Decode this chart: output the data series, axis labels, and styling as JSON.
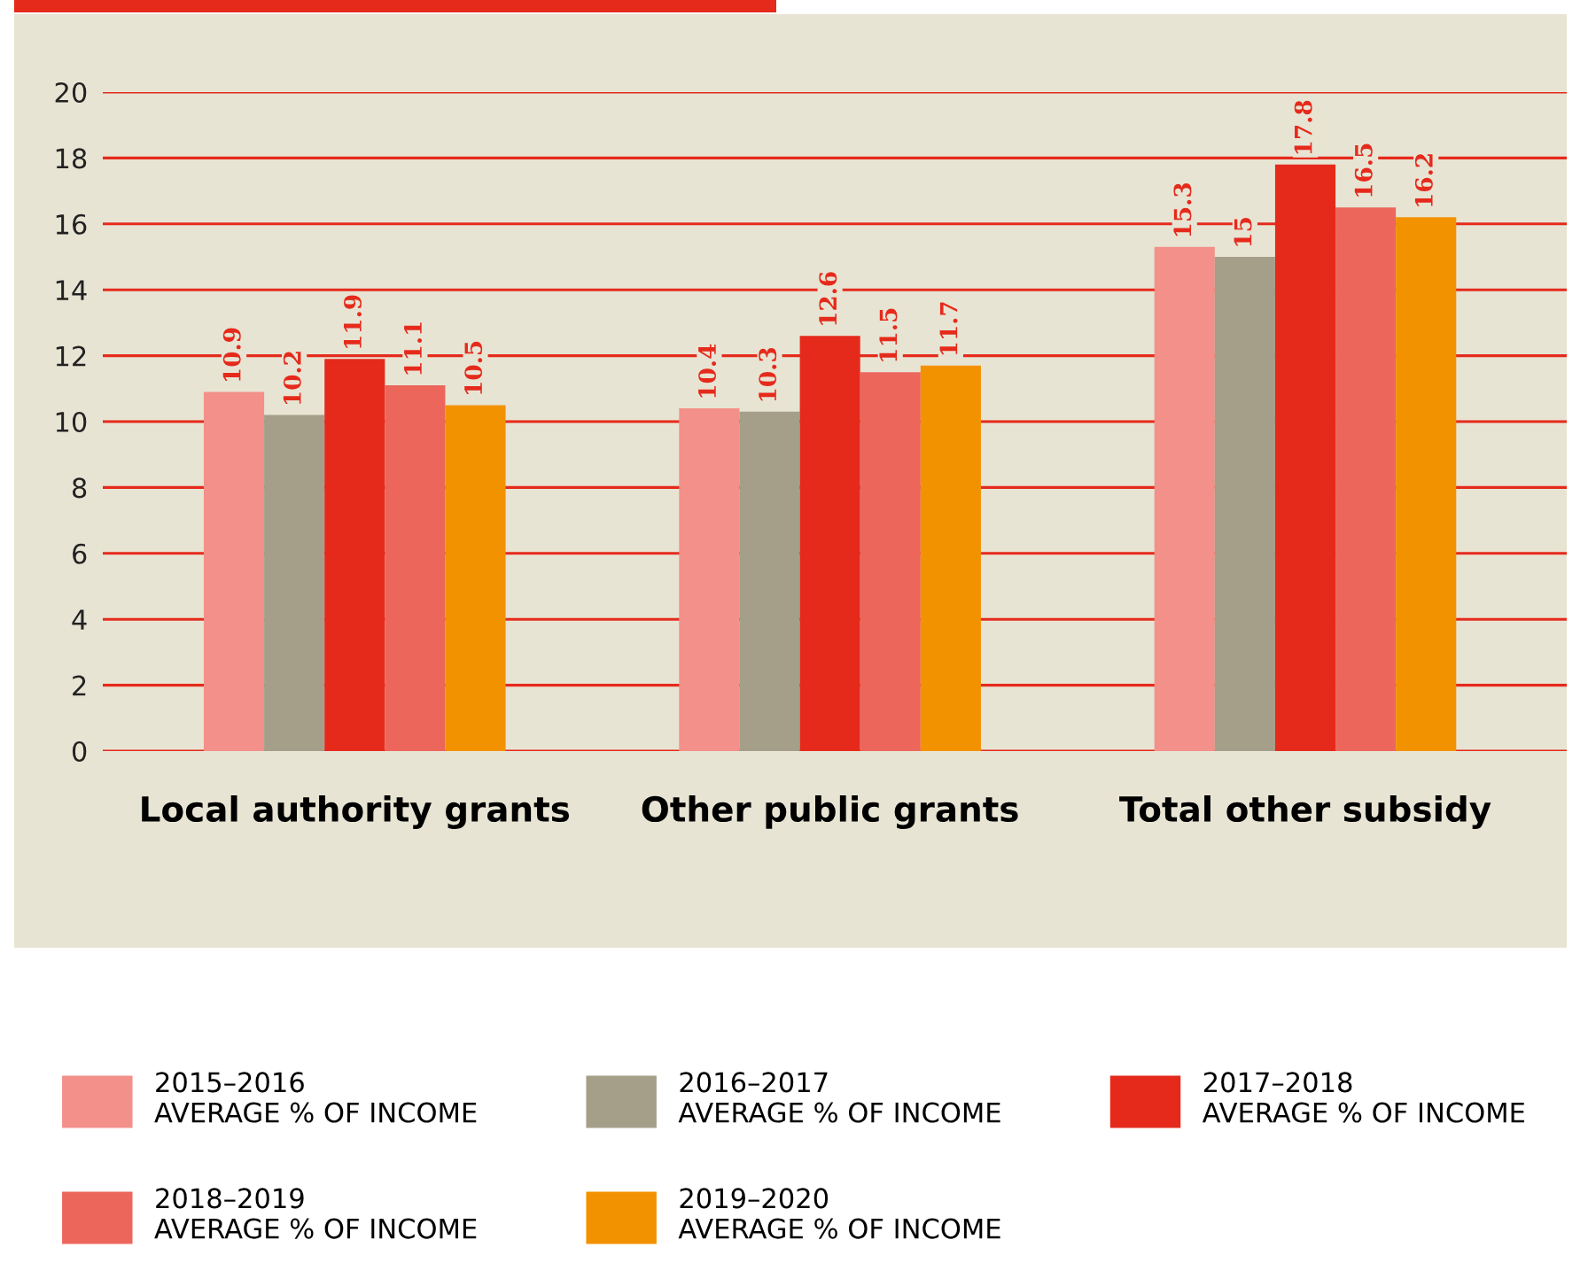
{
  "chart_data": {
    "type": "bar",
    "categories": [
      "Local authority grants",
      "Other public grants",
      "Total other subsidy"
    ],
    "series": [
      {
        "name": "2015–2016\nAVERAGE % OF INCOME",
        "color": "#f29089",
        "values": [
          10.9,
          10.4,
          15.3
        ]
      },
      {
        "name": "2016–2017\nAVERAGE % OF INCOME",
        "color": "#a59f8a",
        "values": [
          10.2,
          10.3,
          15
        ]
      },
      {
        "name": "2017–2018\nAVERAGE % OF INCOME",
        "color": "#e52a1c",
        "values": [
          11.9,
          12.6,
          17.8
        ]
      },
      {
        "name": "2018–2019\nAVERAGE % OF INCOME",
        "color": "#ec665c",
        "values": [
          11.1,
          11.5,
          16.5
        ]
      },
      {
        "name": "2019–2020\nAVERAGE % OF INCOME",
        "color": "#f39200",
        "values": [
          10.5,
          11.7,
          16.2
        ]
      }
    ],
    "ylim": [
      0,
      20
    ],
    "yticks": [
      0,
      2,
      4,
      6,
      8,
      10,
      12,
      14,
      16,
      18,
      20
    ],
    "grid": "y",
    "legend": "bottom",
    "data_labels": true
  }
}
